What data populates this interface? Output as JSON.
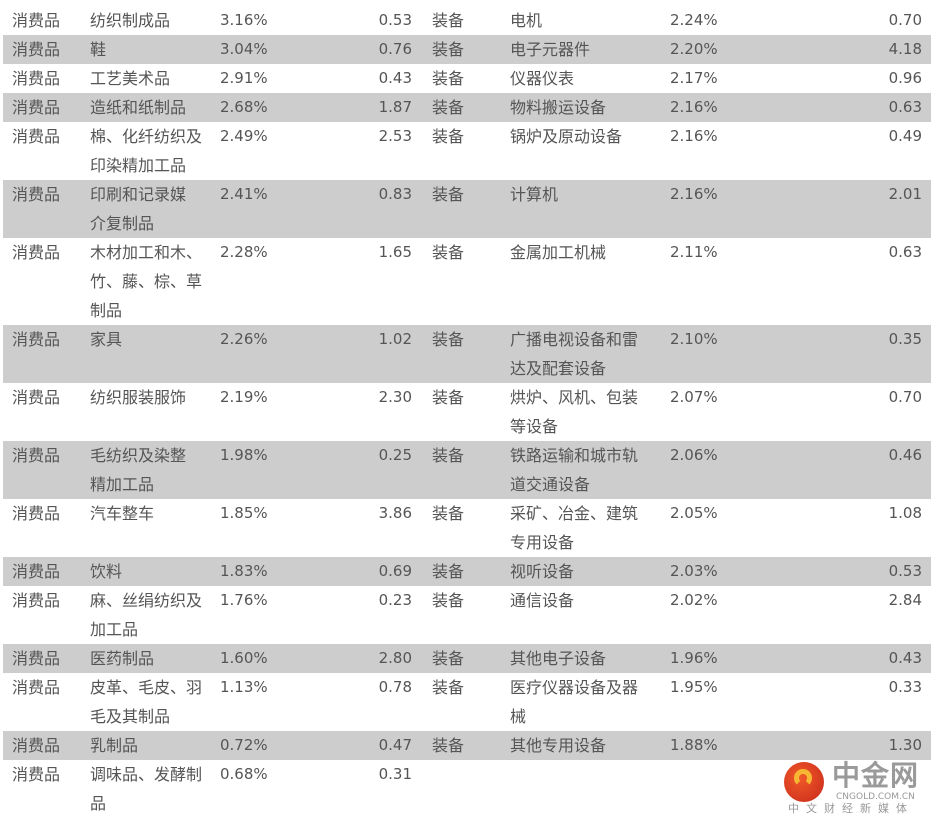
{
  "rows": [
    [
      "消费品",
      "纺织制成品",
      "3.16%",
      "0.53",
      "装备",
      "电机",
      "2.24%",
      "0.70"
    ],
    [
      "消费品",
      "鞋",
      "3.04%",
      "0.76",
      "装备",
      "电子元器件",
      "2.20%",
      "4.18"
    ],
    [
      "消费品",
      "工艺美术品",
      "2.91%",
      "0.43",
      "装备",
      "仪器仪表",
      "2.17%",
      "0.96"
    ],
    [
      "消费品",
      "造纸和纸制品",
      "2.68%",
      "1.87",
      "装备",
      "物料搬运设备",
      "2.16%",
      "0.63"
    ],
    [
      "消费品",
      "棉、化纤纺织及\n印染精加工品",
      "2.49%",
      "2.53",
      "装备",
      "锅炉及原动设备",
      "2.16%",
      "0.49"
    ],
    [
      "消费品",
      "印刷和记录媒\n介复制品",
      "2.41%",
      "0.83",
      "装备",
      "计算机",
      "2.16%",
      "2.01"
    ],
    [
      "消费品",
      "木材加工和木、\n竹、藤、棕、草\n制品",
      "2.28%",
      "1.65",
      "装备",
      "金属加工机械",
      "2.11%",
      "0.63"
    ],
    [
      "消费品",
      "家具",
      "2.26%",
      "1.02",
      "装备",
      "广播电视设备和雷\n达及配套设备",
      "2.10%",
      "0.35"
    ],
    [
      "消费品",
      "纺织服装服饰",
      "2.19%",
      "2.30",
      "装备",
      "烘炉、风机、包装\n等设备",
      "2.07%",
      "0.70"
    ],
    [
      "消费品",
      "毛纺织及染整\n精加工品",
      "1.98%",
      "0.25",
      "装备",
      "铁路运输和城市轨\n道交通设备",
      "2.06%",
      "0.46"
    ],
    [
      "消费品",
      "汽车整车",
      "1.85%",
      "3.86",
      "装备",
      "采矿、冶金、建筑\n专用设备",
      "2.05%",
      "1.08"
    ],
    [
      "消费品",
      "饮料",
      "1.83%",
      "0.69",
      "装备",
      "视听设备",
      "2.03%",
      "0.53"
    ],
    [
      "消费品",
      "麻、丝绢纺织及\n加工品",
      "1.76%",
      "0.23",
      "装备",
      "通信设备",
      "2.02%",
      "2.84"
    ],
    [
      "消费品",
      "医药制品",
      "1.60%",
      "2.80",
      "装备",
      "其他电子设备",
      "1.96%",
      "0.43"
    ],
    [
      "消费品",
      "皮革、毛皮、羽\n毛及其制品",
      "1.13%",
      "0.78",
      "装备",
      "医疗仪器设备及器\n械",
      "1.95%",
      "0.33"
    ],
    [
      "消费品",
      "乳制品",
      "0.72%",
      "0.47",
      "装备",
      "其他专用设备",
      "1.88%",
      "1.30"
    ],
    [
      "消费品",
      "调味品、发酵制\n品",
      "0.68%",
      "0.31",
      "",
      "",
      "",
      ""
    ]
  ],
  "colors": {
    "stripe": "#cdcdcd",
    "text": "#555555"
  },
  "watermark": {
    "name": "中金网",
    "url": "CNGOLD.COM.CN",
    "tagline": "中文财经新媒体"
  }
}
